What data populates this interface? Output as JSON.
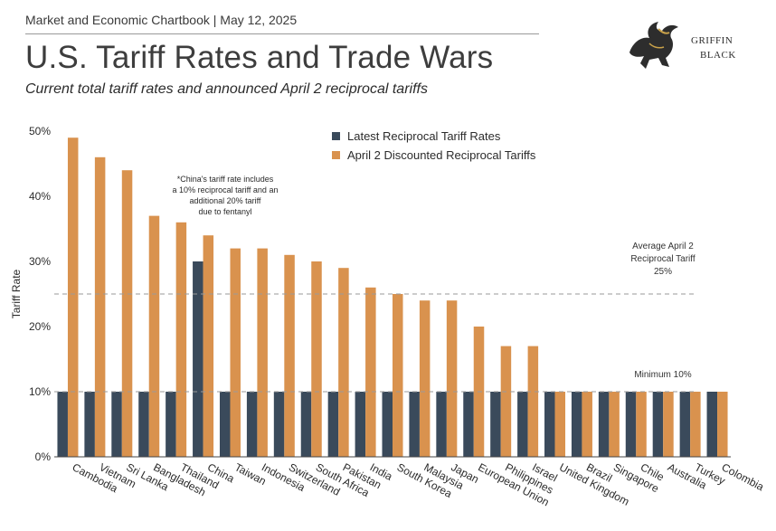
{
  "header": {
    "top_line": "Market and Economic Chartbook | May 12, 2025",
    "title": "U.S. Tariff Rates and Trade Wars",
    "subtitle": "Current total tariff rates and announced April 2 reciprocal tariffs",
    "logo": {
      "line1": "GRIFFIN",
      "line2": "BLACK",
      "icon": "griffin-emblem-icon"
    }
  },
  "chart_data": {
    "type": "bar",
    "ylabel": "Tariff Rate",
    "xlabel": "",
    "ylim": [
      0,
      50
    ],
    "yticks": [
      "0%",
      "10%",
      "20%",
      "30%",
      "40%",
      "50%"
    ],
    "ytick_values": [
      0,
      10,
      20,
      30,
      40,
      50
    ],
    "grid": false,
    "legend_position": "top-center",
    "colors": {
      "latest": "#3a4a5b",
      "april": "#d9924e",
      "refline": "#9a9a9a",
      "axis": "#444444"
    },
    "categories": [
      "Cambodia",
      "Vietnam",
      "Sri Lanka",
      "Bangladesh",
      "Thailand",
      "China",
      "Taiwan",
      "Indonesia",
      "Switzerland",
      "South Africa",
      "Pakistan",
      "India",
      "South Korea",
      "Malaysia",
      "Japan",
      "European Union",
      "Philippines",
      "Israel",
      "United Kingdom",
      "Brazil",
      "Singapore",
      "Chile",
      "Australia",
      "Turkey",
      "Colombia"
    ],
    "series": [
      {
        "name": "Latest Reciprocal Tariff Rates",
        "values": [
          10,
          10,
          10,
          10,
          10,
          30,
          10,
          10,
          10,
          10,
          10,
          10,
          10,
          10,
          10,
          10,
          10,
          10,
          10,
          10,
          10,
          10,
          10,
          10,
          10
        ]
      },
      {
        "name": "April 2 Discounted Reciprocal Tariffs",
        "values": [
          49,
          46,
          44,
          37,
          36,
          34,
          32,
          32,
          31,
          30,
          29,
          26,
          25,
          24,
          24,
          20,
          17,
          17,
          10,
          10,
          10,
          10,
          10,
          10,
          10
        ]
      }
    ],
    "reference_lines": [
      {
        "value": 25,
        "label_lines": [
          "Average April 2",
          "Reciprocal Tariff",
          "25%"
        ]
      },
      {
        "value": 10,
        "label_lines": [
          "Minimum 10%"
        ]
      }
    ],
    "note_lines": [
      "*China's tariff rate includes",
      "a 10% reciprocal tariff and an",
      "additional 20% tariff",
      "due to fentanyl"
    ]
  }
}
